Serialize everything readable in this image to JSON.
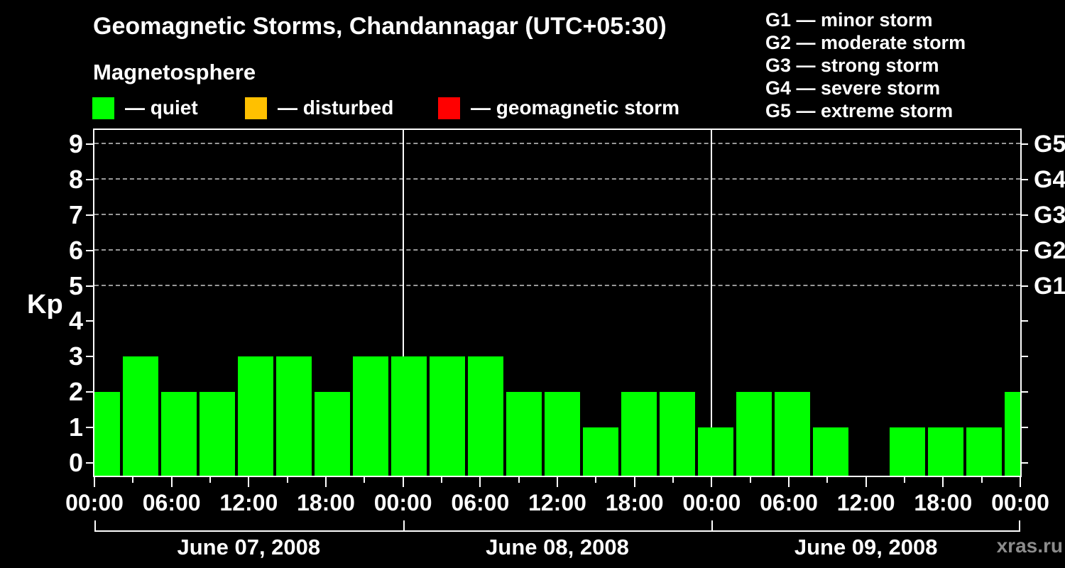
{
  "header": {
    "title": "Geomagnetic Storms, Chandannagar (UTC+05:30)",
    "subtitle": "Magnetosphere"
  },
  "legend": {
    "items": [
      {
        "name": "quiet",
        "color": "#00FF00",
        "label": "— quiet"
      },
      {
        "name": "disturbed",
        "color": "#FFC000",
        "label": "— disturbed"
      },
      {
        "name": "storm",
        "color": "#FF0000",
        "label": "— geomagnetic storm"
      }
    ]
  },
  "storm_scale": [
    "G1 — minor storm",
    "G2 — moderate storm",
    "G3 — strong storm",
    "G4 — severe storm",
    "G5 — extreme storm"
  ],
  "watermark": "xras.ru",
  "colors": {
    "background": "#000000",
    "text": "#FFFFFF",
    "axis": "#FFFFFF",
    "grid": "#999999",
    "bar": "#00FF00",
    "watermark": "#8C8C8C"
  },
  "chart_data": {
    "type": "bar",
    "title": "Geomagnetic Storms, Chandannagar (UTC+05:30)",
    "subtitle": "Magnetosphere",
    "ylabel": "Kp",
    "ylim": [
      0,
      9
    ],
    "y_ticks": [
      0,
      1,
      2,
      3,
      4,
      5,
      6,
      7,
      8,
      9
    ],
    "gridlines_at": [
      5,
      6,
      7,
      8,
      9
    ],
    "grid_style": "dashed",
    "legend_position": "top",
    "x_tick_labels": [
      "00:00",
      "06:00",
      "12:00",
      "18:00",
      "00:00",
      "06:00",
      "12:00",
      "18:00",
      "00:00",
      "06:00",
      "12:00",
      "18:00",
      "00:00"
    ],
    "bar_color": "#00FF00",
    "bar_interval_hours": 3,
    "days": [
      {
        "date": "June 07, 2008",
        "kp": [
          2,
          3,
          2,
          2,
          3,
          3,
          2,
          3
        ]
      },
      {
        "date": "June 08, 2008",
        "kp": [
          3,
          3,
          3,
          2,
          2,
          1,
          2,
          2
        ]
      },
      {
        "date": "June 09, 2008",
        "kp": [
          1,
          2,
          2,
          1,
          0,
          1,
          1,
          1
        ]
      }
    ],
    "next_day_partial_kp": 2,
    "right_axis": {
      "levels": [
        {
          "kp": 5,
          "label": "G1"
        },
        {
          "kp": 6,
          "label": "G2"
        },
        {
          "kp": 7,
          "label": "G3"
        },
        {
          "kp": 8,
          "label": "G4"
        },
        {
          "kp": 9,
          "label": "G5"
        }
      ]
    }
  }
}
